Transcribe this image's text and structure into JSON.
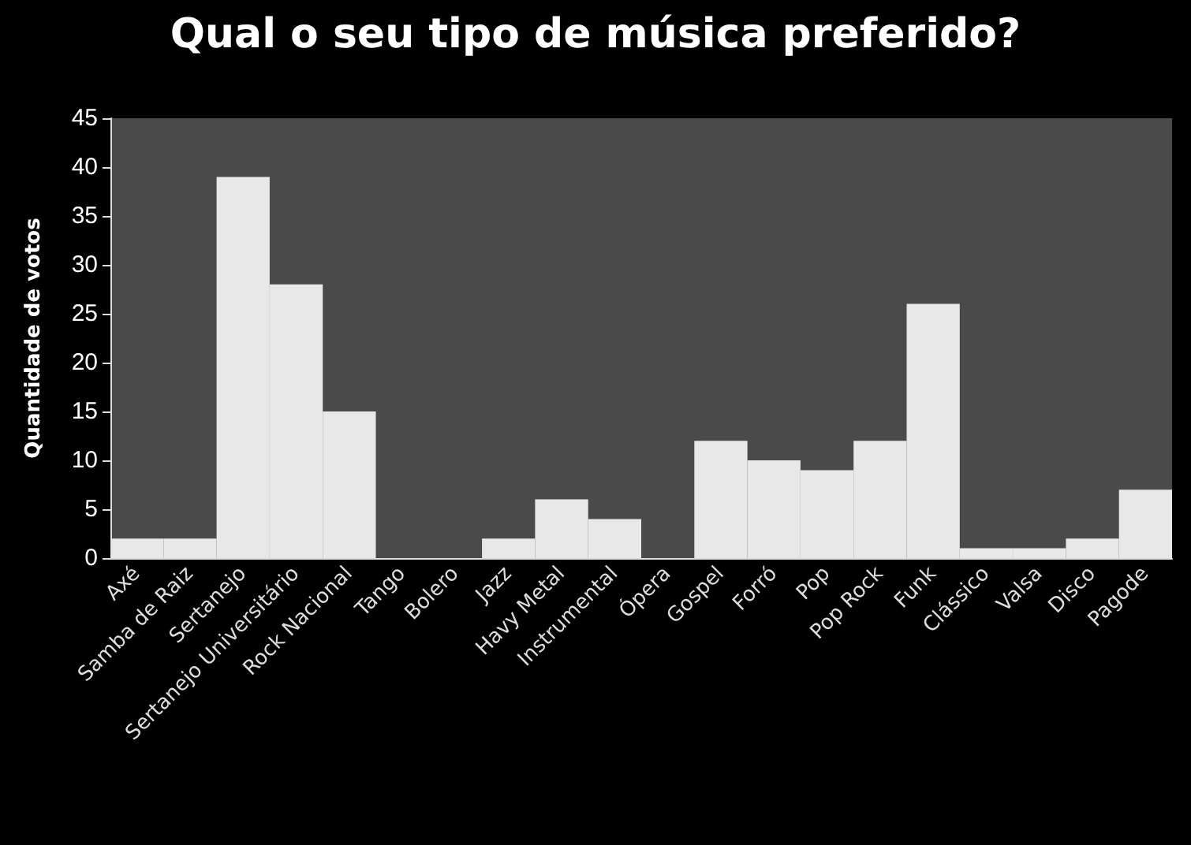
{
  "chart_data": {
    "type": "bar",
    "title": "Qual o seu tipo de música preferido?",
    "ylabel": "Quantidade de votos",
    "categories": [
      "Axé",
      "Samba de Raiz",
      "Sertanejo",
      "Sertanejo Universitário",
      "Rock Nacional",
      "Tango",
      "Bolero",
      "Jazz",
      "Havy Metal",
      "Instrumental",
      "Ópera",
      "Gospel",
      "Forró",
      "Pop",
      "Pop Rock",
      "Funk",
      "Clássico",
      "Valsa",
      "Disco",
      "Pagode"
    ],
    "values": [
      2,
      2,
      39,
      28,
      15,
      0,
      0,
      2,
      6,
      4,
      0,
      12,
      10,
      9,
      12,
      26,
      1,
      1,
      2,
      7
    ],
    "color": "#e8e8e8",
    "ylim": [
      0,
      45
    ],
    "yticks": [
      0,
      5,
      10,
      15,
      20,
      25,
      30,
      35,
      40,
      45
    ],
    "grid": false
  }
}
